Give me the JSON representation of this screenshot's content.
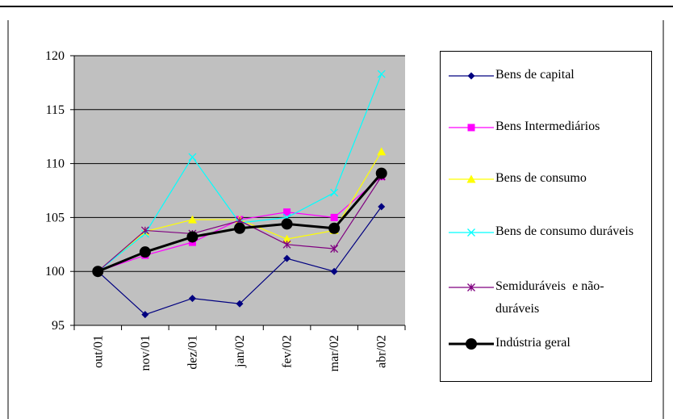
{
  "chart_data": {
    "type": "line",
    "categories": [
      "out/01",
      "nov/01",
      "dez/01",
      "jan/02",
      "fev/02",
      "mar/02",
      "abr/02"
    ],
    "ylim": [
      95,
      120
    ],
    "yticks": [
      95,
      100,
      105,
      110,
      115,
      120
    ],
    "grid": true,
    "series": [
      {
        "name": "Bens de capital",
        "color": "#000080",
        "marker": "diamond",
        "values": [
          100,
          96,
          97.5,
          97,
          101.2,
          100,
          106
        ]
      },
      {
        "name": "Bens Intermediários",
        "color": "#ff00ff",
        "marker": "square",
        "values": [
          100,
          101.5,
          102.7,
          104.8,
          105.5,
          105,
          108.8
        ]
      },
      {
        "name": "Bens de consumo",
        "color": "#ffff00",
        "marker": "triangle",
        "values": [
          100,
          103.7,
          104.8,
          104.8,
          103,
          103.8,
          111.1
        ]
      },
      {
        "name": "Bens de consumo duráveis",
        "color": "#00ffff",
        "marker": "x",
        "values": [
          100,
          103.5,
          110.6,
          104.5,
          105,
          107.3,
          118.3
        ]
      },
      {
        "name": "Semiduráveis  e não-duráveis",
        "color": "#800080",
        "marker": "star",
        "values": [
          100,
          103.8,
          103.5,
          104.7,
          102.5,
          102.1,
          108.8
        ]
      },
      {
        "name": "Indústria geral",
        "color": "#000000",
        "marker": "circle",
        "values": [
          100,
          101.8,
          103.2,
          104,
          104.4,
          104,
          109.1
        ]
      }
    ]
  }
}
